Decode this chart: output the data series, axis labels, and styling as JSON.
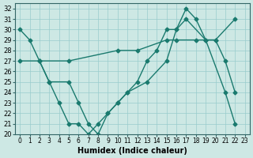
{
  "line1_x": [
    0,
    1,
    2,
    3,
    4,
    5,
    6,
    7,
    8,
    9,
    10,
    11,
    12,
    13,
    14,
    15,
    16,
    17,
    18,
    19,
    20,
    21,
    22
  ],
  "line1_y": [
    30,
    29,
    27,
    25,
    23,
    21,
    21,
    20,
    21,
    22,
    23,
    24,
    25,
    27,
    28,
    30,
    30,
    32,
    31,
    29,
    29,
    27,
    24
  ],
  "line2_x": [
    0,
    2,
    5,
    10,
    12,
    15,
    16,
    18,
    20,
    22
  ],
  "line2_y": [
    27,
    27,
    27,
    28,
    28,
    29,
    29,
    29,
    29,
    31
  ],
  "line3_x": [
    2,
    3,
    5,
    6,
    7,
    8,
    9,
    10,
    11,
    13,
    15,
    16,
    17,
    19,
    21,
    22
  ],
  "line3_y": [
    27,
    25,
    25,
    23,
    21,
    20,
    22,
    23,
    24,
    25,
    27,
    30,
    31,
    29,
    24,
    21
  ],
  "line_color": "#1a7a6e",
  "bg_color": "#cde8e4",
  "grid_color": "#99cccc",
  "xlabel": "Humidex (Indice chaleur)",
  "xlim": [
    -0.5,
    23.5
  ],
  "ylim": [
    20,
    32.5
  ],
  "xticks": [
    0,
    1,
    2,
    3,
    4,
    5,
    6,
    7,
    8,
    9,
    10,
    11,
    12,
    13,
    14,
    15,
    16,
    17,
    18,
    19,
    20,
    21,
    22,
    23
  ],
  "yticks": [
    20,
    21,
    22,
    23,
    24,
    25,
    26,
    27,
    28,
    29,
    30,
    31,
    32
  ],
  "marker": "D",
  "markersize": 2.5,
  "linewidth": 1.0
}
